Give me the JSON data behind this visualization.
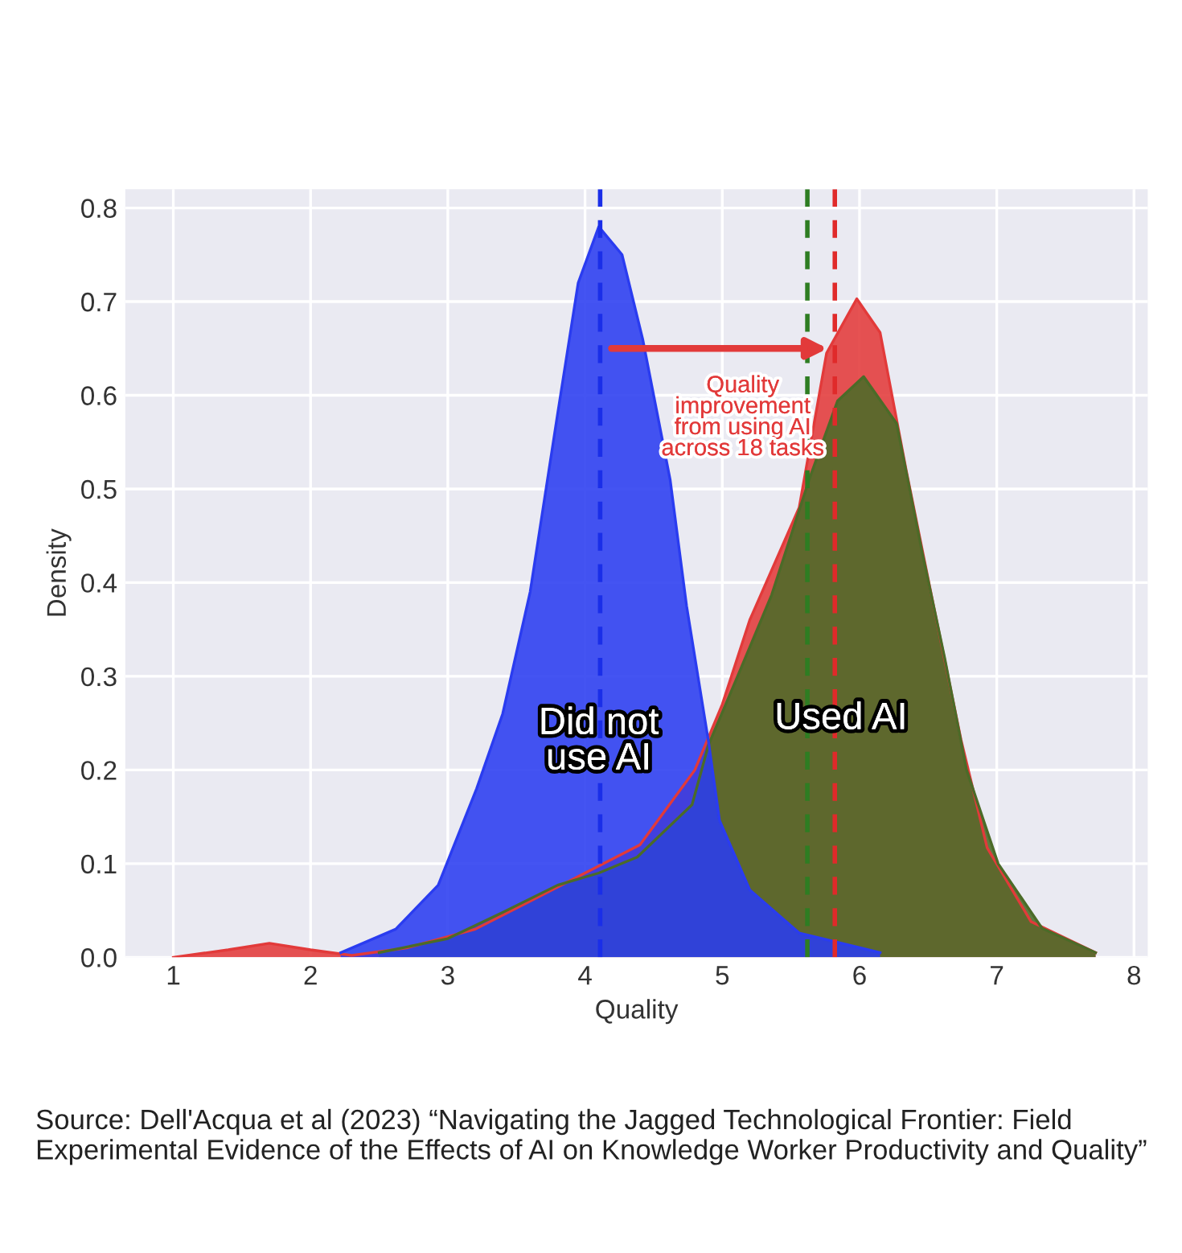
{
  "chart_data": {
    "type": "area",
    "xlabel": "Quality",
    "ylabel": "Density",
    "xlim": [
      0.65,
      8.1
    ],
    "xticks": [
      1,
      2,
      3,
      4,
      5,
      6,
      7,
      8
    ],
    "ylim": [
      0,
      0.82
    ],
    "yticks": [
      {
        "value": 0,
        "label": "0.0"
      },
      0.1,
      0.2,
      0.3,
      0.4,
      0.5,
      0.6,
      0.7,
      0.8
    ],
    "grid": true,
    "legend": false,
    "series": [
      {
        "color": "#e23a3a",
        "x": [
          1.0,
          1.4,
          1.7,
          2.0,
          2.3,
          2.7,
          3.2,
          3.6,
          4.0,
          4.4,
          4.8,
          5.0,
          5.2,
          5.56,
          5.76,
          5.98,
          6.15,
          6.34,
          6.54,
          6.74,
          6.93,
          7.25,
          7.72
        ],
        "values": [
          0.0,
          0.008,
          0.015,
          0.008,
          0.002,
          0.01,
          0.03,
          0.06,
          0.09,
          0.12,
          0.2,
          0.27,
          0.36,
          0.48,
          0.645,
          0.703,
          0.667,
          0.52,
          0.375,
          0.232,
          0.117,
          0.038,
          0.005
        ]
      },
      {
        "color": "#4b6b28",
        "x": [
          2.5,
          3.0,
          3.4,
          3.8,
          4.1,
          4.38,
          4.78,
          4.9,
          5.1,
          5.36,
          5.64,
          5.84,
          6.03,
          6.27,
          6.46,
          6.62,
          6.78,
          7.01,
          7.33,
          7.72
        ],
        "values": [
          0.005,
          0.02,
          0.048,
          0.077,
          0.09,
          0.107,
          0.163,
          0.227,
          0.296,
          0.387,
          0.513,
          0.594,
          0.62,
          0.57,
          0.43,
          0.32,
          0.2,
          0.1,
          0.031,
          0.005
        ]
      },
      {
        "color": "#2a3cf0",
        "x": [
          2.22,
          2.62,
          2.93,
          3.21,
          3.4,
          3.6,
          3.8,
          3.95,
          4.1,
          4.27,
          4.42,
          4.62,
          4.74,
          4.9,
          4.98,
          5.2,
          5.56,
          6.15
        ],
        "values": [
          0.005,
          0.03,
          0.077,
          0.18,
          0.26,
          0.39,
          0.58,
          0.72,
          0.78,
          0.75,
          0.66,
          0.51,
          0.375,
          0.23,
          0.146,
          0.072,
          0.026,
          0.005
        ]
      }
    ],
    "ref_lines": [
      {
        "axis": "x",
        "value": 4.11,
        "color": "#1a2ee8",
        "line_style": "dashed"
      },
      {
        "axis": "x",
        "value": 5.62,
        "color": "#2e7d22",
        "line_style": "dashed"
      },
      {
        "axis": "x",
        "value": 5.82,
        "color": "#e02a2a",
        "line_style": "dashed"
      }
    ],
    "annotations": [
      {
        "text": "Quality\nimprovement\nfrom using AI\nacross 18 tasks",
        "x": 5.8,
        "y": 0.65
      },
      {
        "text": "Did not\nuse AI",
        "x": 4.1,
        "y": 0.23
      },
      "Used AI",
      "Source: Dell'Acqua et al (2023) “Navigating the Jagged Technological Frontier: Field Experimental Evidence of the Effects of AI on Knowledge Worker Productivity and Quality”"
    ]
  }
}
